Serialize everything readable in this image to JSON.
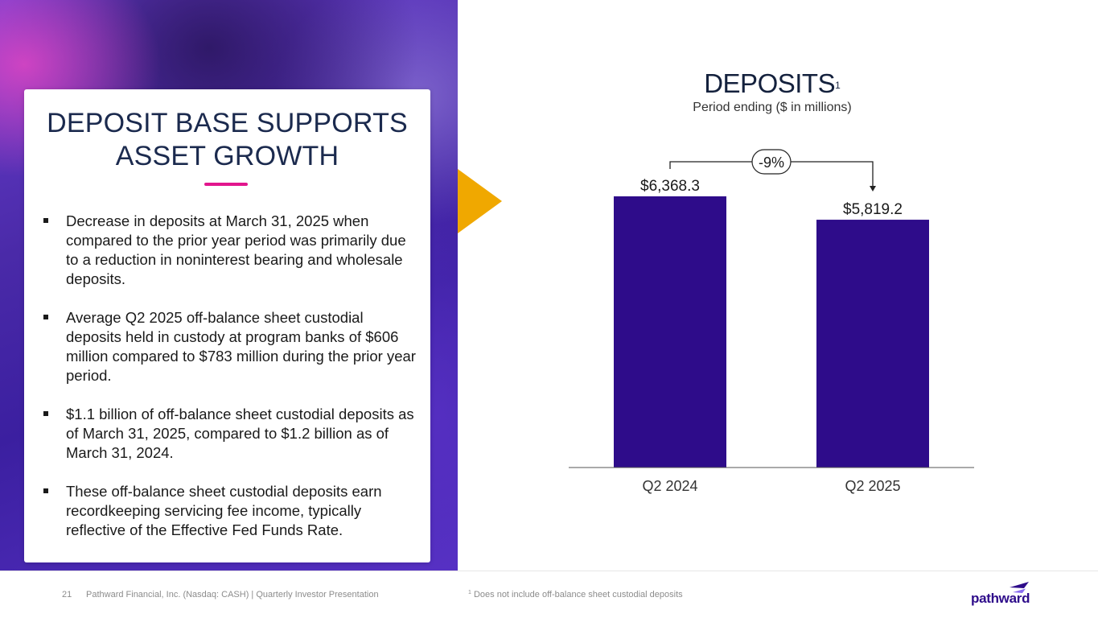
{
  "slide": {
    "title_line1": "DEPOSIT BASE SUPPORTS",
    "title_line2": "ASSET GROWTH",
    "bullets": [
      "Decrease in deposits at March 31, 2025 when compared to the prior year period was primarily due to a reduction in noninterest bearing and wholesale deposits.",
      "Average Q2 2025 off-balance sheet custodial deposits held in custody at program banks of $606 million compared to $783 million during the prior year period.",
      "$1.1 billion of off-balance sheet custodial deposits as of March 31, 2025, compared to $1.2 billion as of March 31, 2024.",
      "These off-balance sheet custodial deposits earn recordkeeping servicing fee income, typically reflective of the Effective Fed Funds Rate."
    ]
  },
  "chart_data": {
    "type": "bar",
    "title": "DEPOSITS",
    "title_superscript": "1",
    "subtitle": "Period ending ($ in millions)",
    "categories": [
      "Q2 2024",
      "Q2 2025"
    ],
    "values": [
      6368.3,
      5819.2
    ],
    "data_labels": [
      "$6,368.3",
      "$5,819.2"
    ],
    "change_label": "-9%",
    "ylim": [
      0,
      6368.3
    ],
    "grid": false,
    "bar_color": "#2e0c8a"
  },
  "footer": {
    "page_number": "21",
    "text": "Pathward Financial, Inc. (Nasdaq: CASH) | Quarterly Investor Presentation",
    "footnote_marker": "1",
    "footnote_text": " Does not include off-balance sheet custodial deposits",
    "logo_text": "pathward"
  },
  "colors": {
    "accent_magenta": "#e2168d",
    "accent_gold": "#f0a800",
    "brand_purple": "#2e0c8a",
    "title_navy": "#1b2a4e"
  }
}
